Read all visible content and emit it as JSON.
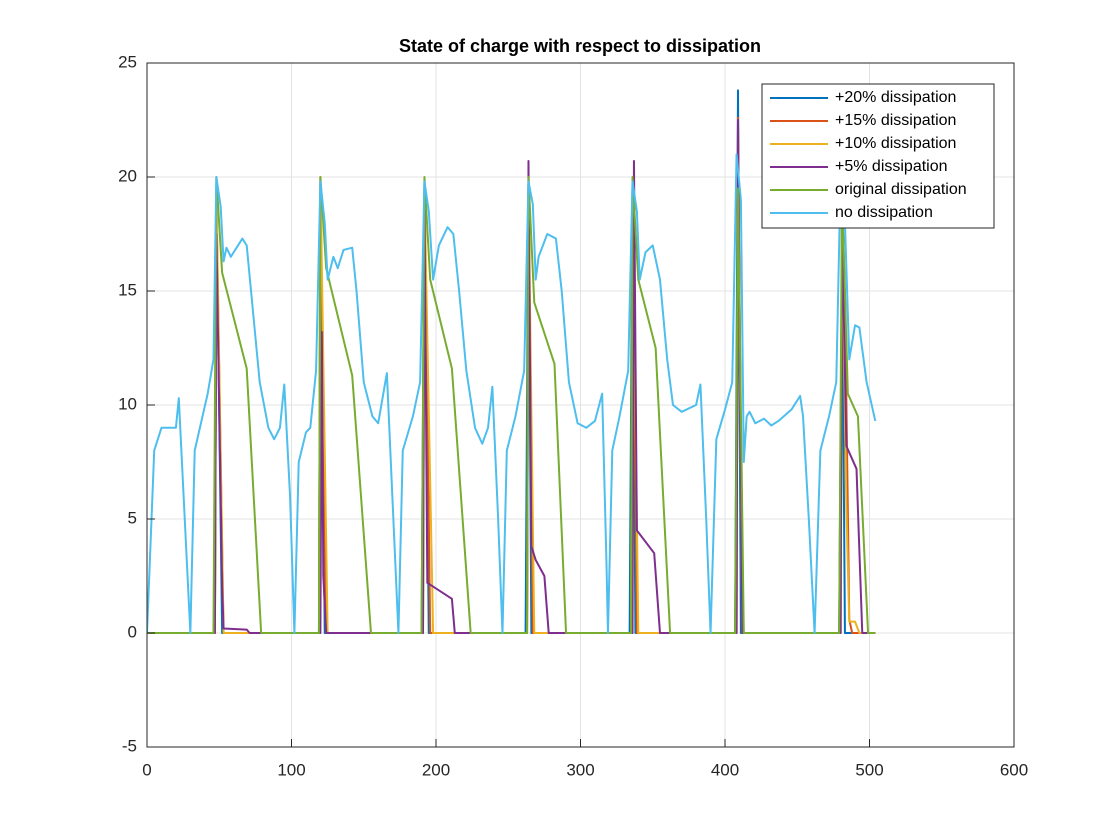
{
  "chart_data": {
    "type": "line",
    "title": "State of charge with respect to dissipation",
    "xlim": [
      0,
      600
    ],
    "xticks": [
      0,
      100,
      200,
      300,
      400,
      500,
      600
    ],
    "ylim": [
      -5,
      25
    ],
    "yticks": [
      -5,
      0,
      5,
      10,
      15,
      20,
      25
    ],
    "grid": true,
    "legend": "northeast",
    "series": [
      {
        "name": "+20% dissipation",
        "color": "#0072BD",
        "x": [
          0,
          47,
          48,
          52,
          119,
          120,
          123,
          190,
          192,
          195,
          262,
          264,
          266,
          334,
          336,
          338,
          407,
          409,
          411,
          479,
          481,
          483,
          504
        ],
        "values": [
          0,
          0,
          19,
          0,
          0,
          19.8,
          0,
          0,
          19.5,
          0,
          0,
          19.8,
          0,
          0,
          19.9,
          0,
          0,
          23.8,
          0,
          0,
          17,
          0,
          0
        ]
      },
      {
        "name": "+15% dissipation",
        "color": "#D95319",
        "x": [
          0,
          47,
          48,
          53,
          119,
          120,
          124,
          191,
          192,
          196,
          263,
          264,
          267,
          335,
          336,
          339,
          408,
          409,
          412,
          480,
          481,
          483,
          486,
          488,
          504
        ],
        "values": [
          0,
          0,
          19,
          0,
          0,
          20,
          0,
          0,
          19.8,
          0,
          0,
          19.7,
          0,
          0,
          19.8,
          0,
          0,
          22.6,
          0,
          0,
          16,
          15,
          0.6,
          0,
          0
        ]
      },
      {
        "name": "+10% dissipation",
        "color": "#EDB120",
        "x": [
          0,
          47,
          48,
          53,
          119,
          120,
          125,
          191,
          192,
          198,
          263,
          264,
          268,
          335,
          336,
          340,
          408,
          409,
          412,
          480,
          481,
          484,
          486,
          490,
          493,
          504
        ],
        "values": [
          0,
          0,
          19.5,
          0,
          0,
          20,
          0,
          0,
          19.5,
          0,
          0,
          19.5,
          0,
          0,
          19.8,
          0,
          0,
          21.5,
          0,
          0,
          18,
          5.5,
          0.5,
          0.5,
          0,
          0
        ]
      },
      {
        "name": "+5% dissipation",
        "color": "#7E2F8E",
        "x": [
          0,
          47,
          48,
          52,
          53,
          69,
          71,
          120,
          121,
          122,
          124,
          191,
          192,
          194,
          211,
          213,
          263,
          264,
          266,
          269,
          275,
          278,
          336,
          337,
          339,
          351,
          355,
          408,
          409,
          412,
          480,
          481,
          484,
          491,
          495,
          504
        ],
        "values": [
          0,
          0,
          17.5,
          2,
          0.2,
          0.15,
          0,
          0,
          13.2,
          2.5,
          0,
          0,
          19,
          2.2,
          1.5,
          0,
          0,
          20.7,
          3.8,
          3.2,
          2.5,
          0,
          0,
          20.7,
          4.5,
          3.5,
          0,
          0,
          22.5,
          0,
          0,
          18,
          8.2,
          7.2,
          0,
          0
        ]
      },
      {
        "name": "original dissipation",
        "color": "#77AC30",
        "x": [
          0,
          46,
          48,
          52,
          69,
          79,
          119,
          120,
          124,
          142,
          155,
          190,
          192,
          196,
          211,
          224,
          263,
          264,
          268,
          282,
          290,
          335,
          336,
          340,
          352,
          362,
          407,
          409,
          413,
          479,
          481,
          485,
          492,
          499,
          504
        ],
        "values": [
          0,
          0,
          20,
          15.8,
          11.6,
          0,
          0,
          20,
          16,
          11.3,
          0,
          0,
          20,
          15.5,
          11.6,
          0,
          0,
          20,
          14.5,
          11.8,
          0,
          0,
          20,
          15.5,
          12.5,
          0,
          0,
          19.5,
          0,
          0,
          19.5,
          10.5,
          9.5,
          0,
          0
        ]
      },
      {
        "name": "no dissipation",
        "color": "#4DBEEE",
        "x": [
          0,
          5,
          10,
          20,
          22,
          30,
          33,
          42,
          46,
          48,
          51,
          53,
          55,
          58,
          66,
          69,
          72,
          78,
          84,
          88,
          92,
          95,
          99,
          102,
          105,
          110,
          113,
          117,
          120,
          123,
          125,
          129,
          132,
          136,
          142,
          145,
          150,
          156,
          160,
          166,
          174,
          177,
          184,
          189,
          192,
          195,
          198,
          202,
          208,
          212,
          216,
          221,
          227,
          232,
          236,
          239,
          243,
          246,
          249,
          255,
          261,
          264,
          267,
          269,
          271,
          277,
          283,
          287,
          292,
          298,
          304,
          310,
          315,
          318,
          319,
          322,
          327,
          333,
          336,
          339,
          341,
          345,
          350,
          355,
          360,
          364,
          370,
          380,
          383,
          387,
          390,
          394,
          400,
          405,
          408,
          411,
          413,
          415,
          417,
          421,
          427,
          432,
          437,
          446,
          452,
          454,
          458,
          462,
          466,
          472,
          477,
          480,
          483,
          486,
          490,
          493,
          498,
          504
        ],
        "values": [
          0,
          8,
          9,
          9,
          10.3,
          0,
          8,
          10.5,
          12,
          20,
          18.7,
          16.3,
          16.9,
          16.5,
          17.3,
          17,
          15,
          11,
          9,
          8.5,
          9,
          10.9,
          6,
          0,
          7.5,
          8.8,
          9,
          11.5,
          19.8,
          18,
          15.5,
          16.5,
          16,
          16.8,
          16.9,
          15,
          11,
          9.5,
          9.2,
          11.4,
          0,
          8,
          9.5,
          11,
          19.8,
          18.5,
          15.5,
          17,
          17.8,
          17.5,
          15,
          11.5,
          9,
          8.3,
          9,
          10.8,
          5,
          0,
          8,
          9.5,
          11.5,
          19.8,
          18.8,
          15.5,
          16.5,
          17.5,
          17.3,
          15,
          11,
          9.2,
          9,
          9.3,
          10.5,
          3,
          0,
          8,
          9.5,
          11.5,
          19.8,
          18.5,
          15.5,
          16.7,
          17,
          15.5,
          12,
          10,
          9.7,
          10,
          10.9,
          5,
          0,
          8.5,
          9.8,
          11,
          21,
          19,
          7.5,
          9.5,
          9.7,
          9.2,
          9.4,
          9.1,
          9.3,
          9.8,
          10.4,
          9.5,
          5,
          0,
          8,
          9.5,
          11,
          20,
          18,
          12,
          13.5,
          13.4,
          11,
          9.3
        ]
      }
    ]
  }
}
